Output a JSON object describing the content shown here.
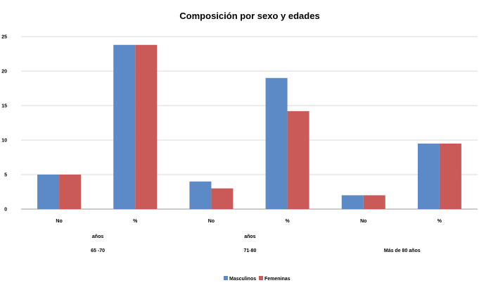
{
  "chart_data": {
    "type": "bar",
    "title": "Composición por sexo y edades",
    "categories": [
      "No",
      "%",
      "No",
      "%",
      "No",
      "%"
    ],
    "group_labels": [
      {
        "top": "años",
        "bottom": "65 -70"
      },
      {
        "top": "años",
        "bottom": "71-80"
      },
      {
        "top": "",
        "bottom": "Más de 80 años"
      }
    ],
    "series": [
      {
        "name": "Masculinos",
        "color": "#5b8ac6",
        "values": [
          5,
          23.8,
          4,
          19,
          2,
          9.5
        ]
      },
      {
        "name": "Femeninas",
        "color": "#c95a57",
        "values": [
          5,
          23.8,
          3,
          14.2,
          2,
          9.5
        ]
      }
    ],
    "ylim": [
      0,
      25
    ],
    "yticks": [
      0,
      5,
      10,
      15,
      20,
      25
    ],
    "grid": true,
    "legend": "bottom-center"
  }
}
